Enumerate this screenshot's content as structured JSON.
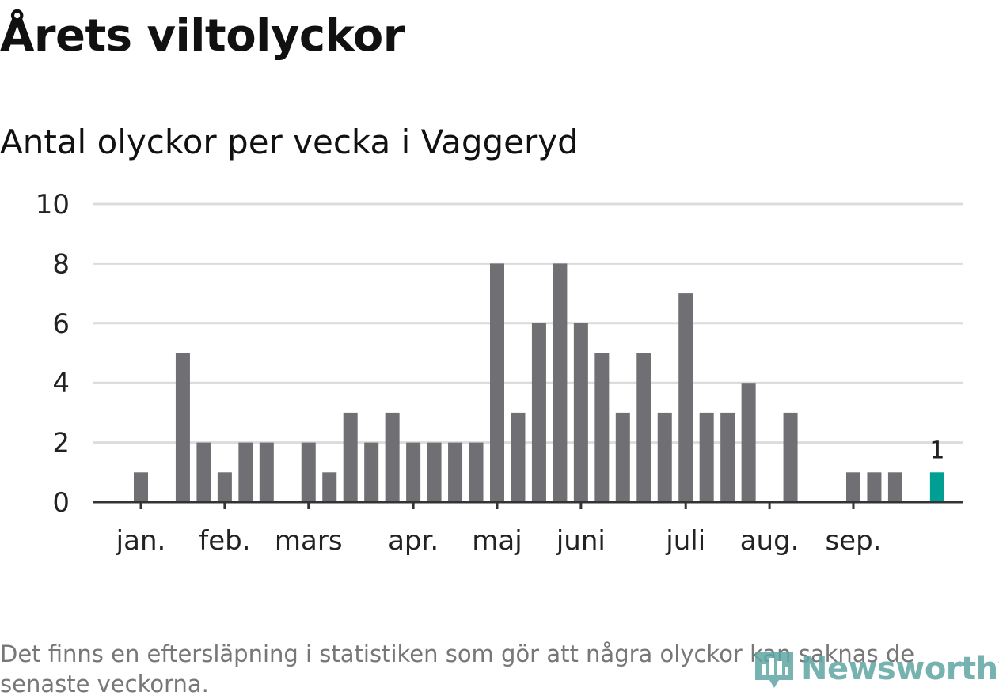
{
  "title": "Årets viltolyckor",
  "subtitle": "Antal olyckor per vecka i Vaggeryd",
  "footnote": "Det finns en eftersläpning i statistiken som gör att några olyckor kan saknas de senaste veckorna.",
  "logo": {
    "name": "Newsworthy",
    "icon": "bar-chart-logo-icon"
  },
  "colors": {
    "bar": "#706f74",
    "highlight": "#009e93",
    "grid": "#dcdcdc",
    "axis": "#333333",
    "text": "#222222"
  },
  "chart_data": {
    "type": "bar",
    "title": "Antal olyckor per vecka i Vaggeryd",
    "xlabel": "",
    "ylabel": "",
    "ylim": [
      0,
      10
    ],
    "yticks": [
      0,
      2,
      4,
      6,
      8,
      10
    ],
    "grid": true,
    "weeks": [
      1,
      2,
      3,
      4,
      5,
      6,
      7,
      8,
      9,
      10,
      11,
      12,
      13,
      14,
      15,
      16,
      17,
      18,
      19,
      20,
      21,
      22,
      23,
      24,
      25,
      26,
      27,
      28,
      29,
      30,
      31,
      32,
      33,
      34,
      35,
      36,
      37,
      38,
      39
    ],
    "values": [
      1,
      0,
      5,
      2,
      1,
      2,
      2,
      0,
      2,
      1,
      3,
      2,
      3,
      2,
      2,
      2,
      2,
      8,
      3,
      6,
      8,
      6,
      5,
      3,
      5,
      3,
      7,
      3,
      3,
      4,
      0,
      3,
      0,
      0,
      1,
      1,
      1,
      0,
      1
    ],
    "highlight_index": 38,
    "highlight_label": "1",
    "month_ticks": [
      {
        "label": "jan.",
        "week": 1
      },
      {
        "label": "feb.",
        "week": 5
      },
      {
        "label": "mars",
        "week": 9
      },
      {
        "label": "apr.",
        "week": 14
      },
      {
        "label": "maj",
        "week": 18
      },
      {
        "label": "juni",
        "week": 22
      },
      {
        "label": "juli",
        "week": 27
      },
      {
        "label": "aug.",
        "week": 31
      },
      {
        "label": "sep.",
        "week": 35
      }
    ]
  }
}
